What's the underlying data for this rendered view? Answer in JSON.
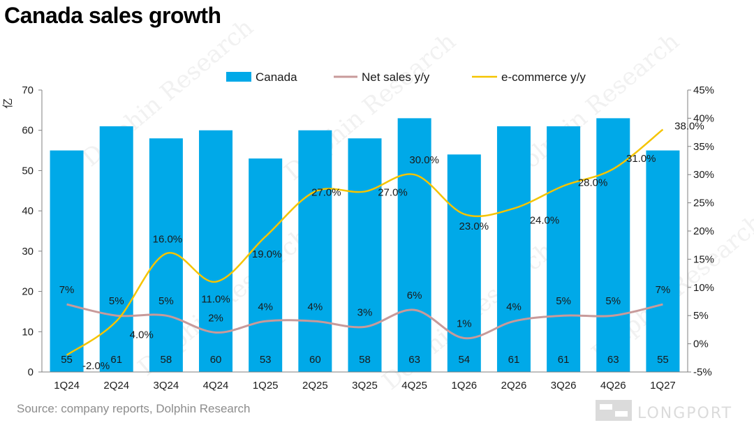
{
  "title": "Canada sales growth",
  "source": "Source: company reports, Dolphin Research",
  "watermarks": {
    "brand": "Dolphin Research",
    "logo": "LONGPORT"
  },
  "colors": {
    "bar": "#00a9e8",
    "net_sales": "#c89a9a",
    "ecommerce": "#f5c400"
  },
  "chart_data": {
    "type": "bar",
    "categories": [
      "1Q24",
      "2Q24",
      "3Q24",
      "4Q24",
      "1Q25",
      "2Q25",
      "3Q25",
      "4Q25",
      "1Q26",
      "2Q26",
      "3Q26",
      "4Q26",
      "1Q27"
    ],
    "ylabel": "亿",
    "ylim": [
      0,
      70
    ],
    "yticks": [
      "0",
      "10",
      "20",
      "30",
      "40",
      "50",
      "60",
      "70"
    ],
    "y2lim": [
      -5,
      45
    ],
    "y2ticks": [
      "-5%",
      "0%",
      "5%",
      "10%",
      "15%",
      "20%",
      "25%",
      "30%",
      "35%",
      "40%",
      "45%"
    ],
    "legend": "top",
    "grid": false,
    "series": [
      {
        "name": "Canada",
        "type": "bar",
        "axis": "left",
        "values": [
          55,
          61,
          58,
          60,
          53,
          60,
          58,
          63,
          54,
          61,
          61,
          63,
          55
        ],
        "labels": [
          "55",
          "61",
          "58",
          "60",
          "53",
          "60",
          "58",
          "63",
          "54",
          "61",
          "61",
          "63",
          "55"
        ]
      },
      {
        "name": "Net sales y/y",
        "type": "line",
        "axis": "right",
        "values": [
          7,
          5,
          5,
          2,
          4,
          4,
          3,
          6,
          1,
          4,
          5,
          5,
          7
        ],
        "labels": [
          "7%",
          "5%",
          "5%",
          "2%",
          "4%",
          "4%",
          "3%",
          "6%",
          "1%",
          "4%",
          "5%",
          "5%",
          "7%"
        ]
      },
      {
        "name": "e-commerce y/y",
        "type": "line",
        "axis": "right",
        "values": [
          -2.0,
          4.0,
          16.0,
          11.0,
          19.0,
          27.0,
          27.0,
          30.0,
          23.0,
          24.0,
          28.0,
          31.0,
          38.0
        ],
        "labels": [
          "-2.0%",
          "4.0%",
          "16.0%",
          "11.0%",
          "19.0%",
          "27.0%",
          "27.0%",
          "30.0%",
          "23.0%",
          "24.0%",
          "28.0%",
          "31.0%",
          "38.0%"
        ]
      }
    ]
  }
}
